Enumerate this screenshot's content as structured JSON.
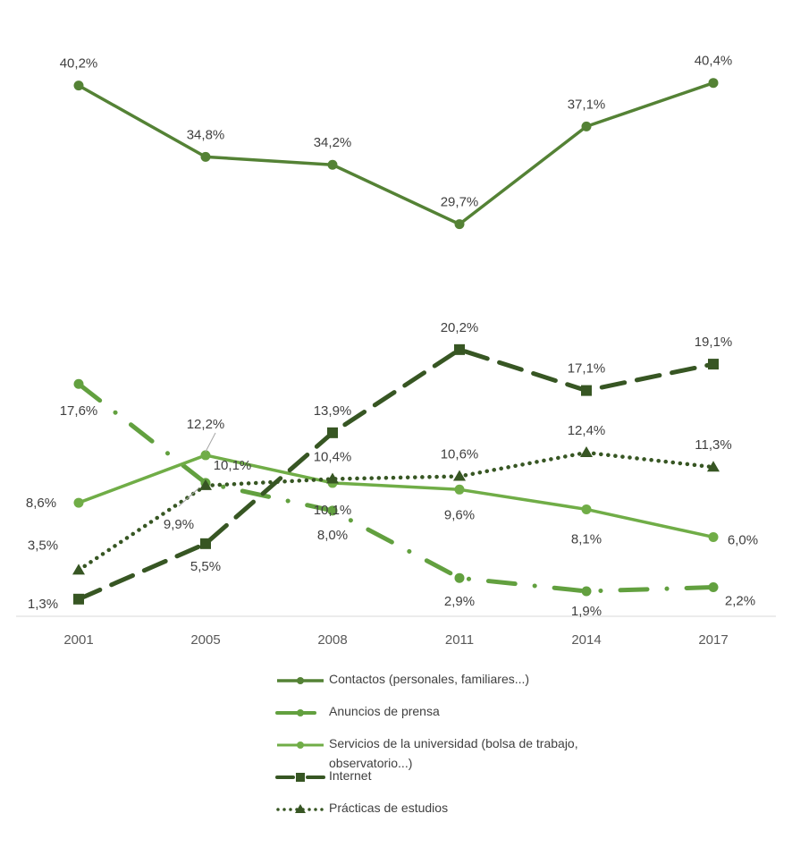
{
  "chart_data": {
    "type": "line",
    "title": "",
    "xlabel": "",
    "ylabel": "",
    "categories": [
      "2001",
      "2005",
      "2008",
      "2011",
      "2014",
      "2017"
    ],
    "ylim": [
      0,
      45
    ],
    "grid": false,
    "legend_position": "bottom",
    "series": [
      {
        "name": "Contactos (personales, familiares...)",
        "values": [
          40.2,
          34.8,
          34.2,
          29.7,
          37.1,
          40.4
        ],
        "labels": [
          "40,2%",
          "34,8%",
          "34,2%",
          "29,7%",
          "37,1%",
          "40,4%"
        ],
        "color": "#548235",
        "dash": "solid",
        "marker": "circle"
      },
      {
        "name": "Anuncios de prensa",
        "values": [
          17.6,
          10.1,
          8.0,
          2.9,
          1.9,
          2.2
        ],
        "labels": [
          "17,6%",
          "10,1%",
          "8,0%",
          "2,9%",
          "1,9%",
          "2,2%"
        ],
        "color": "#62a03f",
        "dash": "long-dash-dot",
        "marker": "circle"
      },
      {
        "name": "Servicios de la universidad (bolsa de trabajo, observatorio...)",
        "values": [
          8.6,
          12.2,
          10.1,
          9.6,
          8.1,
          6.0
        ],
        "labels": [
          "8,6%",
          "12,2%",
          "10,1%",
          "9,6%",
          "8,1%",
          "6,0%"
        ],
        "color": "#70ad47",
        "dash": "solid",
        "marker": "circle"
      },
      {
        "name": "Internet",
        "values": [
          1.3,
          5.5,
          13.9,
          20.2,
          17.1,
          19.1
        ],
        "labels": [
          "1,3%",
          "5,5%",
          "13,9%",
          "20,2%",
          "17,1%",
          "19,1%"
        ],
        "color": "#375623",
        "dash": "dash",
        "marker": "square"
      },
      {
        "name": "Prácticas de estudios",
        "values": [
          3.5,
          9.9,
          10.4,
          10.6,
          12.4,
          11.3
        ],
        "labels": [
          "3,5%",
          "9,9%",
          "10,4%",
          "10,6%",
          "12,4%",
          "11,3%"
        ],
        "color": "#375623",
        "dash": "dot",
        "marker": "triangle"
      }
    ]
  },
  "legend": {
    "items": [
      "Contactos (personales, familiares...)",
      "Anuncios de prensa",
      "Servicios de la universidad (bolsa de trabajo, observatorio...)",
      "Internet",
      "Prácticas de estudios"
    ]
  }
}
